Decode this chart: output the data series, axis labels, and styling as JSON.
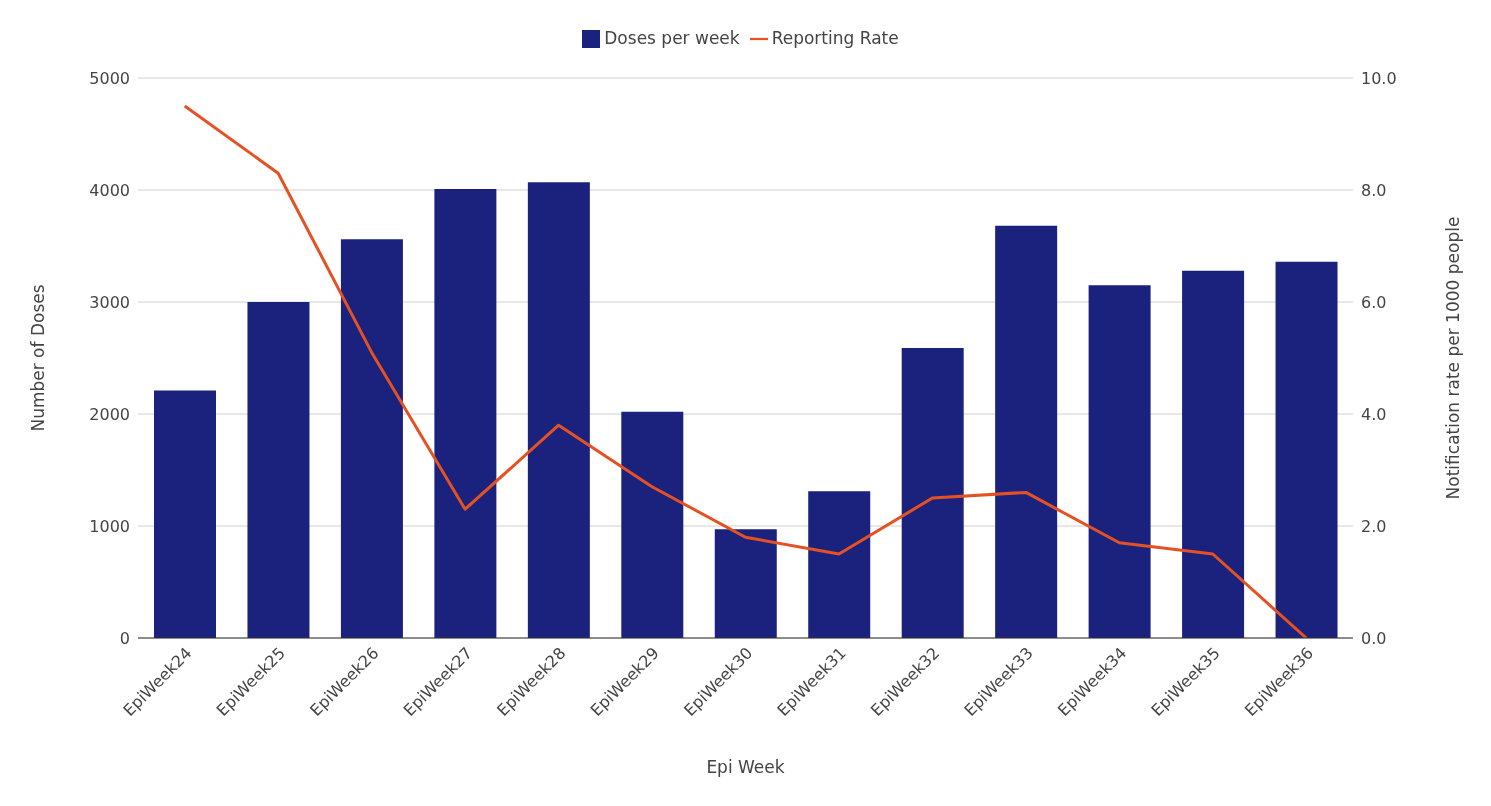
{
  "chart_data": {
    "type": "bar",
    "xlabel": "Epi Week",
    "ylabel": "Number of Doses",
    "y2label": "Notification rate per 1000 people",
    "categories": [
      "EpiWeek24",
      "EpiWeek25",
      "EpiWeek26",
      "EpiWeek27",
      "EpiWeek28",
      "EpiWeek29",
      "EpiWeek30",
      "EpiWeek31",
      "EpiWeek32",
      "EpiWeek33",
      "EpiWeek34",
      "EpiWeek35",
      "EpiWeek36"
    ],
    "series": [
      {
        "name": "Doses per week",
        "color": "#1a227e",
        "values": [
          2210,
          3000,
          3560,
          4010,
          4070,
          2020,
          970,
          1310,
          2590,
          3680,
          3150,
          3280,
          3360
        ]
      },
      {
        "name": "Reporting Rate",
        "type": "line",
        "axis": "y2",
        "color": "#e65123",
        "values": [
          9.5,
          8.3,
          5.1,
          2.3,
          3.8,
          2.7,
          1.8,
          1.5,
          2.5,
          2.6,
          1.7,
          1.5,
          0
        ]
      }
    ],
    "ylim": [
      0,
      5000
    ],
    "yticks": [
      0,
      1000,
      2000,
      3000,
      4000,
      5000
    ],
    "y2lim": [
      0,
      10
    ],
    "y2ticks": [
      {
        "value": 0,
        "label": "0.0"
      },
      {
        "value": 2,
        "label": "2.0"
      },
      {
        "value": 4,
        "label": "4.0"
      },
      {
        "value": 6,
        "label": "6.0"
      },
      {
        "value": 8,
        "label": "8.0"
      },
      {
        "value": 10,
        "label": "10.0"
      }
    ],
    "grid": "y",
    "legend": "top",
    "marker": "none",
    "line_style": "solid"
  }
}
